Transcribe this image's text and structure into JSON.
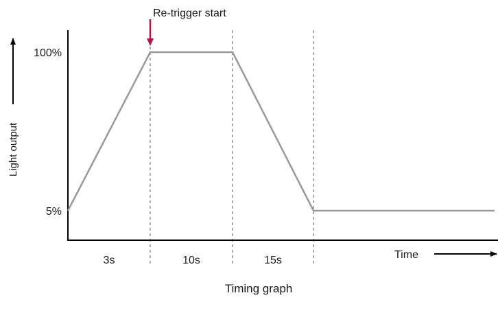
{
  "chart_data": {
    "type": "line",
    "title": "",
    "caption": "Timing graph",
    "xlabel": "Time",
    "ylabel": "Light output",
    "y_ticks": [
      {
        "value": 5,
        "label": "5%"
      },
      {
        "value": 100,
        "label": "100%"
      }
    ],
    "segments": [
      {
        "duration": 3,
        "label": "3s"
      },
      {
        "duration": 10,
        "label": "10s"
      },
      {
        "duration": 15,
        "label": "15s"
      }
    ],
    "series": [
      {
        "points": [
          {
            "t": 0,
            "level": 5
          },
          {
            "t": 3,
            "level": 100
          },
          {
            "t": 13,
            "level": 100
          },
          {
            "t": 28,
            "level": 5
          },
          {
            "t": 50,
            "level": 5
          }
        ]
      }
    ],
    "annotations": [
      {
        "t": 3,
        "text": "Re-trigger start"
      }
    ],
    "grid": false,
    "colors": {
      "line": "#999999",
      "axis": "#000000",
      "divider": "#555555",
      "annotation_arrow": "#b01545"
    }
  }
}
